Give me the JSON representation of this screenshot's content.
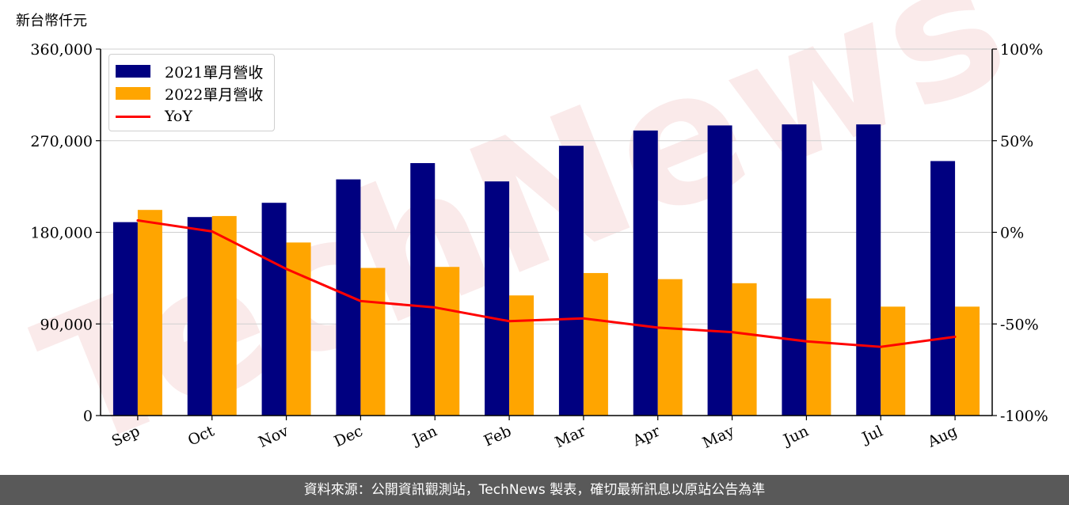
{
  "unit_label": "新台幣仟元",
  "footer_text": "資料來源：公開資訊觀測站，TechNews 製表，確切最新訊息以原站公告為準",
  "watermark_text": "TechNews",
  "colors": {
    "series_2021": "#000080",
    "series_2022": "#FFA500",
    "yoy": "#FF0000",
    "grid": "#d0d0d0",
    "footer_bg": "#595959",
    "watermark": "#e8a0a0"
  },
  "chart_data": {
    "type": "bar",
    "categories": [
      "Sep",
      "Oct",
      "Nov",
      "Dec",
      "Jan",
      "Feb",
      "Mar",
      "Apr",
      "May",
      "Jun",
      "Jul",
      "Aug"
    ],
    "series": [
      {
        "name": "2021單月營收",
        "type": "bar",
        "axis": "left",
        "values": [
          190000,
          195000,
          209000,
          232000,
          248000,
          230000,
          265000,
          280000,
          285000,
          286000,
          286000,
          250000
        ]
      },
      {
        "name": "2022單月營收",
        "type": "bar",
        "axis": "left",
        "values": [
          202000,
          196000,
          170000,
          145000,
          146000,
          118000,
          140000,
          134000,
          130000,
          115000,
          107000,
          107000
        ]
      },
      {
        "name": "YoY",
        "type": "line",
        "axis": "right",
        "values": [
          6.5,
          0.5,
          -20,
          -37.5,
          -41,
          -48.5,
          -47,
          -52,
          -54.5,
          -59.5,
          -62.5,
          -57
        ]
      }
    ],
    "y_left": {
      "lim": [
        0,
        360000
      ],
      "ticks": [
        0,
        90000,
        180000,
        270000,
        360000
      ],
      "tick_labels": [
        "0",
        "90,000",
        "180,000",
        "270,000",
        "360,000"
      ]
    },
    "y_right": {
      "lim": [
        -100,
        100
      ],
      "ticks": [
        -100,
        -50,
        0,
        50,
        100
      ],
      "tick_labels": [
        "-100%",
        "-50%",
        "0%",
        "50%",
        "100%"
      ]
    },
    "grid": true,
    "legend_position": "top-left"
  }
}
